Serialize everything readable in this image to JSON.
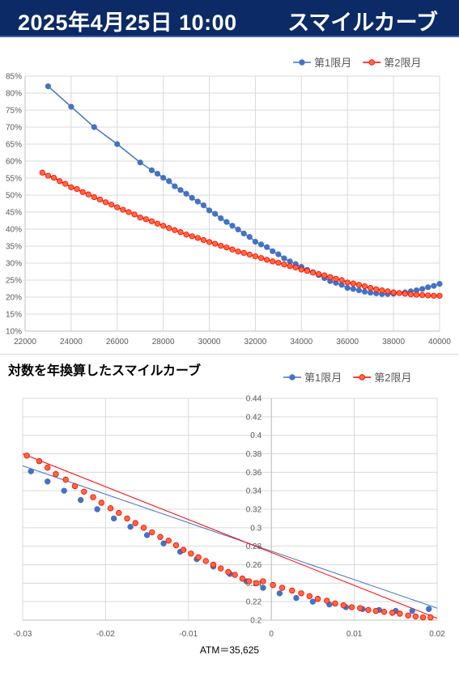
{
  "header": {
    "date_time": "2025年4月25日 10:00",
    "title": "スマイルカーブ",
    "background": "#0b2a66"
  },
  "series_colors": {
    "first": "#4472c4",
    "second": "#ff0000",
    "second_fill": "#ff6a3d"
  },
  "chart_data": [
    {
      "type": "line",
      "title": "",
      "legend_position": "top-right",
      "grid": true,
      "xlim": [
        22000,
        40000
      ],
      "ylim": [
        10,
        85
      ],
      "x_ticks": [
        22000,
        24000,
        26000,
        28000,
        30000,
        32000,
        34000,
        36000,
        38000,
        40000
      ],
      "y_ticks": [
        10,
        15,
        20,
        25,
        30,
        35,
        40,
        45,
        50,
        55,
        60,
        65,
        70,
        75,
        80,
        85
      ],
      "y_tick_labels": [
        "10%",
        "15%",
        "20%",
        "25%",
        "30%",
        "35%",
        "40%",
        "45%",
        "50%",
        "55%",
        "60%",
        "65%",
        "70%",
        "75%",
        "80%",
        "85%"
      ],
      "series": [
        {
          "name": "第1限月",
          "points": [
            [
              23000,
              82
            ],
            [
              24000,
              76
            ],
            [
              25000,
              70
            ],
            [
              26000,
              65
            ],
            [
              27000,
              59.6
            ],
            [
              27500,
              57.3
            ],
            [
              27750,
              56.3
            ],
            [
              28000,
              55.1
            ],
            [
              28250,
              54.1
            ],
            [
              28500,
              52.6
            ],
            [
              28750,
              51.5
            ],
            [
              29000,
              50.4
            ],
            [
              29250,
              49.2
            ],
            [
              29500,
              48.1
            ],
            [
              29750,
              47
            ],
            [
              30000,
              45.5
            ],
            [
              30250,
              44.5
            ],
            [
              30500,
              43.2
            ],
            [
              30750,
              42.1
            ],
            [
              31000,
              41
            ],
            [
              31250,
              39.9
            ],
            [
              31500,
              38.7
            ],
            [
              31750,
              37.7
            ],
            [
              32000,
              36.3
            ],
            [
              32250,
              35.5
            ],
            [
              32500,
              34.7
            ],
            [
              32750,
              33.5
            ],
            [
              33000,
              32.6
            ],
            [
              33250,
              31.4
            ],
            [
              33500,
              30.5
            ],
            [
              33750,
              29.7
            ],
            [
              34000,
              28.9
            ],
            [
              34250,
              28
            ],
            [
              34500,
              27.3
            ],
            [
              34750,
              26.5
            ],
            [
              35000,
              25.6
            ],
            [
              35250,
              24.7
            ],
            [
              35500,
              24.2
            ],
            [
              35750,
              23.6
            ],
            [
              36000,
              22.7
            ],
            [
              36250,
              22.4
            ],
            [
              36500,
              22
            ],
            [
              36750,
              21.6
            ],
            [
              37000,
              21.3
            ],
            [
              37250,
              21.1
            ],
            [
              37500,
              20.9
            ],
            [
              37750,
              20.9
            ],
            [
              38000,
              21
            ],
            [
              38250,
              21.2
            ],
            [
              38500,
              21.4
            ],
            [
              38750,
              21.7
            ],
            [
              39000,
              22
            ],
            [
              39250,
              22.4
            ],
            [
              39500,
              22.9
            ],
            [
              39750,
              23.3
            ],
            [
              40000,
              23.9
            ]
          ]
        },
        {
          "name": "第2限月",
          "points": [
            [
              22750,
              56.6
            ],
            [
              23000,
              55.7
            ],
            [
              23250,
              55.1
            ],
            [
              23500,
              54.1
            ],
            [
              23750,
              53.3
            ],
            [
              24000,
              52.3
            ],
            [
              24250,
              51.8
            ],
            [
              24500,
              50.9
            ],
            [
              24750,
              50.2
            ],
            [
              25000,
              49.4
            ],
            [
              25250,
              48.7
            ],
            [
              25500,
              47.9
            ],
            [
              25750,
              47.2
            ],
            [
              26000,
              46.4
            ],
            [
              26250,
              45.7
            ],
            [
              26500,
              45
            ],
            [
              26750,
              44.3
            ],
            [
              27000,
              43.4
            ],
            [
              27250,
              42.9
            ],
            [
              27500,
              42.3
            ],
            [
              27750,
              41.6
            ],
            [
              28000,
              41
            ],
            [
              28250,
              40.3
            ],
            [
              28500,
              39.7
            ],
            [
              28750,
              39.1
            ],
            [
              29000,
              38.4
            ],
            [
              29250,
              37.9
            ],
            [
              29500,
              37.4
            ],
            [
              29750,
              36.8
            ],
            [
              30000,
              36.2
            ],
            [
              30250,
              35.7
            ],
            [
              30500,
              35.1
            ],
            [
              30750,
              34.6
            ],
            [
              31000,
              34
            ],
            [
              31250,
              33.4
            ],
            [
              31500,
              33
            ],
            [
              31750,
              32.5
            ],
            [
              32000,
              32
            ],
            [
              32250,
              31.5
            ],
            [
              32500,
              31
            ],
            [
              32750,
              30.5
            ],
            [
              33000,
              30.1
            ],
            [
              33250,
              29.6
            ],
            [
              33500,
              29.1
            ],
            [
              33750,
              28.7
            ],
            [
              34000,
              28.1
            ],
            [
              34250,
              27.7
            ],
            [
              34500,
              27.2
            ],
            [
              34750,
              26.8
            ],
            [
              35000,
              26.4
            ],
            [
              35250,
              25.9
            ],
            [
              35500,
              25.4
            ],
            [
              35750,
              25
            ],
            [
              36000,
              24.3
            ],
            [
              36250,
              24
            ],
            [
              36500,
              23.6
            ],
            [
              36750,
              23.2
            ],
            [
              37000,
              22.7
            ],
            [
              37250,
              22.3
            ],
            [
              37500,
              22
            ],
            [
              37750,
              21.7
            ],
            [
              38000,
              21.4
            ],
            [
              38250,
              21.2
            ],
            [
              38500,
              21
            ],
            [
              38750,
              20.8
            ],
            [
              39000,
              20.7
            ],
            [
              39250,
              20.6
            ],
            [
              39500,
              20.5
            ],
            [
              39750,
              20.4
            ],
            [
              40000,
              20.4
            ]
          ]
        }
      ]
    },
    {
      "type": "line",
      "title": "対数を年換算したスマイルカーブ",
      "legend_position": "top-right",
      "grid": true,
      "xlim": [
        -0.03,
        0.02
      ],
      "ylim": [
        0.2,
        0.44
      ],
      "x_ticks": [
        -0.03,
        -0.02,
        -0.01,
        0,
        0.01,
        0.02
      ],
      "x_tick_labels": [
        "-0.03",
        "-0.02",
        "-0.01",
        "0",
        "0.01",
        "0.02"
      ],
      "y_ticks": [
        0.2,
        0.22,
        0.24,
        0.26,
        0.28,
        0.3,
        0.32,
        0.34,
        0.36,
        0.38,
        0.4,
        0.42,
        0.44
      ],
      "y_tick_labels": [
        "0.2",
        "0.22",
        "0.24",
        "0.26",
        "0.28",
        "0.3",
        "0.32",
        "0.34",
        "0.36",
        "0.38",
        "0.4",
        "0.42",
        "0.44"
      ],
      "annotation": "ATM＝35,625",
      "series": [
        {
          "name": "第1限月",
          "line_from": [
            -0.03,
            0.367
          ],
          "line_to": [
            0.02,
            0.213
          ],
          "points": [
            [
              -0.029,
              0.361
            ],
            [
              -0.027,
              0.35
            ],
            [
              -0.025,
              0.34
            ],
            [
              -0.023,
              0.33
            ],
            [
              -0.021,
              0.32
            ],
            [
              -0.019,
              0.31
            ],
            [
              -0.017,
              0.301
            ],
            [
              -0.015,
              0.292
            ],
            [
              -0.013,
              0.283
            ],
            [
              -0.011,
              0.274
            ],
            [
              -0.009,
              0.266
            ],
            [
              -0.007,
              0.258
            ],
            [
              -0.005,
              0.25
            ],
            [
              -0.003,
              0.242
            ],
            [
              -0.001,
              0.235
            ],
            [
              0.001,
              0.229
            ],
            [
              0.003,
              0.224
            ],
            [
              0.005,
              0.22
            ],
            [
              0.007,
              0.217
            ],
            [
              0.009,
              0.214
            ],
            [
              0.011,
              0.212
            ],
            [
              0.013,
              0.211
            ],
            [
              0.015,
              0.21
            ],
            [
              0.017,
              0.21
            ],
            [
              0.019,
              0.212
            ]
          ]
        },
        {
          "name": "第2限月",
          "line_from": [
            -0.03,
            0.38
          ],
          "line_to": [
            0.02,
            0.202
          ],
          "points": [
            [
              -0.0295,
              0.378
            ],
            [
              -0.028,
              0.372
            ],
            [
              -0.027,
              0.365
            ],
            [
              -0.026,
              0.358
            ],
            [
              -0.0248,
              0.352
            ],
            [
              -0.0237,
              0.345
            ],
            [
              -0.0226,
              0.339
            ],
            [
              -0.0215,
              0.333
            ],
            [
              -0.0205,
              0.327
            ],
            [
              -0.0194,
              0.321
            ],
            [
              -0.0184,
              0.316
            ],
            [
              -0.0174,
              0.31
            ],
            [
              -0.0164,
              0.305
            ],
            [
              -0.0154,
              0.3
            ],
            [
              -0.0144,
              0.295
            ],
            [
              -0.0134,
              0.29
            ],
            [
              -0.0124,
              0.286
            ],
            [
              -0.0115,
              0.281
            ],
            [
              -0.0106,
              0.276
            ],
            [
              -0.0097,
              0.272
            ],
            [
              -0.0088,
              0.268
            ],
            [
              -0.0079,
              0.264
            ],
            [
              -0.007,
              0.26
            ],
            [
              -0.0061,
              0.256
            ],
            [
              -0.0052,
              0.252
            ],
            [
              -0.0044,
              0.249
            ],
            [
              -0.0035,
              0.245
            ],
            [
              -0.0027,
              0.242
            ],
            [
              -0.0018,
              0.24
            ],
            [
              -0.001,
              0.242
            ],
            [
              0.0002,
              0.238
            ],
            [
              0.0013,
              0.235
            ],
            [
              0.0025,
              0.232
            ],
            [
              0.0036,
              0.229
            ],
            [
              0.0046,
              0.226
            ],
            [
              0.0056,
              0.223
            ],
            [
              0.0067,
              0.221
            ],
            [
              0.0077,
              0.218
            ],
            [
              0.0087,
              0.216
            ],
            [
              0.0097,
              0.214
            ],
            [
              0.0107,
              0.213
            ],
            [
              0.0117,
              0.211
            ],
            [
              0.0126,
              0.21
            ],
            [
              0.0136,
              0.209
            ],
            [
              0.0146,
              0.208
            ],
            [
              0.0155,
              0.207
            ],
            [
              0.0165,
              0.205
            ],
            [
              0.0174,
              0.204
            ],
            [
              0.0183,
              0.203
            ],
            [
              0.0192,
              0.203
            ]
          ]
        }
      ]
    }
  ]
}
